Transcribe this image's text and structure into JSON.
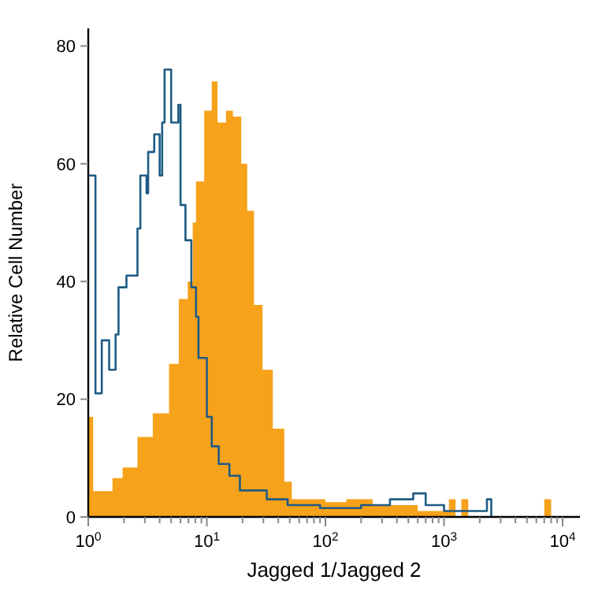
{
  "chart_data": {
    "type": "step",
    "xlabel": "Jagged 1/Jagged 2",
    "ylabel": "Relative Cell Number",
    "log": "x",
    "grid": false,
    "xlim": [
      1,
      14000
    ],
    "ylim": [
      0,
      83
    ],
    "xticks": [
      {
        "value": 1,
        "label": "10$^{0}$"
      },
      {
        "value": 2,
        "label": null
      },
      {
        "value": 3,
        "label": null
      },
      {
        "value": 4,
        "label": null
      },
      {
        "value": 5,
        "label": null
      },
      {
        "value": 6,
        "label": null
      },
      {
        "value": 7,
        "label": null
      },
      {
        "value": 8,
        "label": null
      },
      {
        "value": 9,
        "label": null
      },
      {
        "value": 10,
        "label": "10$^{1}$"
      },
      {
        "value": 20,
        "label": null
      },
      {
        "value": 30,
        "label": null
      },
      {
        "value": 40,
        "label": null
      },
      {
        "value": 50,
        "label": null
      },
      {
        "value": 60,
        "label": null
      },
      {
        "value": 70,
        "label": null
      },
      {
        "value": 80,
        "label": null
      },
      {
        "value": 90,
        "label": null
      },
      {
        "value": 100,
        "label": "10$^{2}$"
      },
      {
        "value": 200,
        "label": null
      },
      {
        "value": 300,
        "label": null
      },
      {
        "value": 400,
        "label": null
      },
      {
        "value": 500,
        "label": null
      },
      {
        "value": 600,
        "label": null
      },
      {
        "value": 700,
        "label": null
      },
      {
        "value": 800,
        "label": null
      },
      {
        "value": 900,
        "label": null
      },
      {
        "value": 1000,
        "label": "10$^{3}$"
      },
      {
        "value": 2000,
        "label": null
      },
      {
        "value": 3000,
        "label": null
      },
      {
        "value": 4000,
        "label": null
      },
      {
        "value": 5000,
        "label": null
      },
      {
        "value": 6000,
        "label": null
      },
      {
        "value": 7000,
        "label": null
      },
      {
        "value": 8000,
        "label": null
      },
      {
        "value": 9000,
        "label": null
      },
      {
        "value": 10000,
        "label": "10$^{4}$"
      }
    ],
    "yticks": [
      0,
      20,
      40,
      60,
      80
    ],
    "series": [
      {
        "type": "area",
        "color": "#f7a21b",
        "x": [
          1,
          1.1,
          1.6,
          1.95,
          2.6,
          3.5,
          4.8,
          5.8,
          6.9,
          7.6,
          8.1,
          9.5,
          11,
          12.3,
          14.5,
          16.6,
          19.5,
          21.9,
          25,
          29.5,
          36,
          45,
          52,
          80,
          100,
          150,
          250,
          400,
          600,
          1100,
          1250,
          1400,
          1600,
          7000,
          8000
        ],
        "values": [
          17,
          4.4,
          6.6,
          8.4,
          13.6,
          17.6,
          26,
          37,
          40,
          50,
          57,
          69,
          74,
          67,
          69,
          68,
          60,
          52,
          36,
          25,
          15,
          6,
          3,
          3,
          2.5,
          3,
          2,
          2,
          1,
          3,
          0,
          3,
          0,
          3,
          0
        ]
      },
      {
        "color": "#1f5b85",
        "x": [
          1,
          1.15,
          1.3,
          1.5,
          1.7,
          1.8,
          2.1,
          2.6,
          2.75,
          3.1,
          3.2,
          3.6,
          4,
          4.2,
          4.4,
          5,
          5.75,
          6,
          6.6,
          7.4,
          8.1,
          8.5,
          10,
          11,
          12.6,
          15.5,
          19,
          32,
          48,
          90,
          200,
          350,
          550,
          700,
          1000,
          2300,
          2500
        ],
        "values": [
          58,
          21,
          30,
          25,
          31,
          39,
          41,
          49,
          58,
          55,
          62,
          65,
          58,
          67,
          76,
          67,
          70,
          53,
          47,
          39,
          34,
          27,
          17,
          12,
          9,
          7,
          4.5,
          3,
          2,
          1.5,
          2,
          3,
          4,
          2,
          1,
          3,
          0
        ]
      }
    ]
  }
}
